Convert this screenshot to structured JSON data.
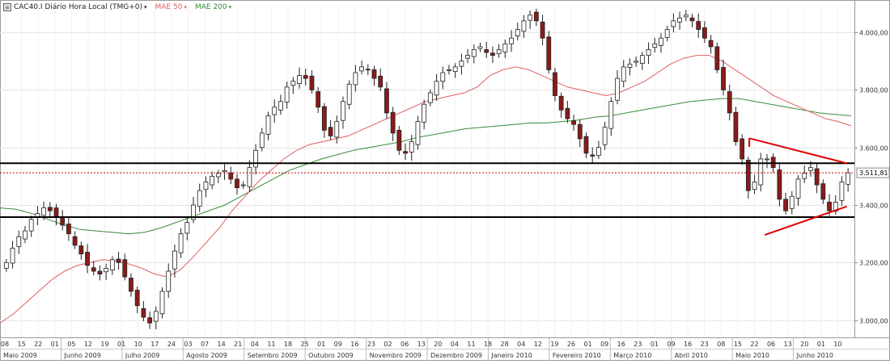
{
  "chart_data": {
    "type": "candlestick",
    "instrument_label": "CAC40.I Diário Hora Local (TMG+0)",
    "indicators": [
      {
        "name": "MAE 50",
        "color": "#e06060"
      },
      {
        "name": "MAE 200",
        "color": "#3a8a3a"
      }
    ],
    "y_axis": {
      "min": 2940,
      "max": 4090,
      "ticks": [
        3000,
        3200,
        3400,
        3600,
        3800,
        4000
      ],
      "tick_labels": [
        "3.000,00",
        "3.200,00",
        "3.400,00",
        "3.600,00",
        "3.800,00",
        "4.000,00"
      ]
    },
    "current_price": {
      "value": 3511.81,
      "label": "3.511,81",
      "color": "#c00000"
    },
    "x_day_labels": [
      "08",
      "15",
      "22",
      "01",
      "05",
      "12",
      "19",
      "01",
      "10",
      "17",
      "24",
      "03",
      "07",
      "14",
      "21",
      "04",
      "11",
      "18",
      "25",
      "01",
      "09",
      "16",
      "23",
      "02",
      "06",
      "13",
      "20",
      "04",
      "11",
      "18",
      "28",
      "04",
      "12",
      "19",
      "26",
      "01",
      "09",
      "16",
      "23",
      "01",
      "09",
      "16",
      "23",
      "08",
      "15",
      "22",
      "06",
      "13",
      "20",
      "01",
      "10"
    ],
    "x_month_labels": [
      "Maio 2009",
      "Junho 2009",
      "Julho 2009",
      "Agosto 2009",
      "Setembro 2009",
      "Outubro 2009",
      "Novembro 2009",
      "Dezembro 2009",
      "Janeiro 2010",
      "Fevereiro 2010",
      "Março 2010",
      "Abril 2010",
      "Maio 2010",
      "Junho 2010"
    ],
    "horizontal_levels": [
      {
        "value": 3545,
        "color": "#000000"
      },
      {
        "value": 3358,
        "color": "#000000"
      }
    ],
    "triangle": {
      "color": "#dd0000",
      "upper": [
        [
          0.877,
          3632
        ],
        [
          0.957,
          3545
        ]
      ],
      "lower": [
        [
          0.895,
          3296
        ],
        [
          0.957,
          3395
        ]
      ]
    },
    "close_series": [
      3200,
      3250,
      3290,
      3310,
      3350,
      3370,
      3390,
      3380,
      3360,
      3330,
      3300,
      3260,
      3230,
      3190,
      3170,
      3160,
      3180,
      3210,
      3200,
      3150,
      3100,
      3050,
      3010,
      2990,
      3030,
      3100,
      3170,
      3240,
      3300,
      3340,
      3400,
      3450,
      3480,
      3500,
      3510,
      3520,
      3490,
      3460,
      3470,
      3530,
      3590,
      3650,
      3710,
      3740,
      3760,
      3810,
      3830,
      3850,
      3840,
      3800,
      3740,
      3660,
      3640,
      3690,
      3760,
      3820,
      3860,
      3880,
      3870,
      3840,
      3810,
      3720,
      3650,
      3590,
      3580,
      3620,
      3690,
      3750,
      3790,
      3830,
      3860,
      3870,
      3880,
      3900,
      3920,
      3940,
      3950,
      3930,
      3920,
      3940,
      3960,
      3980,
      4010,
      4040,
      4060,
      4040,
      3980,
      3870,
      3780,
      3730,
      3700,
      3680,
      3630,
      3580,
      3570,
      3600,
      3670,
      3760,
      3840,
      3880,
      3890,
      3900,
      3920,
      3940,
      3960,
      3980,
      4010,
      4040,
      4050,
      4060,
      4040,
      4010,
      3980,
      3950,
      3870,
      3800,
      3720,
      3620,
      3560,
      3450,
      3480,
      3560,
      3560,
      3530,
      3420,
      3380,
      3430,
      3490,
      3510,
      3530,
      3470,
      3420,
      3380,
      3410,
      3480,
      3512
    ],
    "ma50": [
      2990,
      3020,
      3060,
      3100,
      3140,
      3170,
      3190,
      3200,
      3210,
      3205,
      3195,
      3180,
      3160,
      3150,
      3175,
      3220,
      3270,
      3320,
      3380,
      3430,
      3480,
      3520,
      3560,
      3590,
      3610,
      3620,
      3630,
      3640,
      3660,
      3680,
      3700,
      3720,
      3740,
      3760,
      3770,
      3780,
      3790,
      3810,
      3850,
      3870,
      3880,
      3870,
      3850,
      3830,
      3810,
      3800,
      3790,
      3780,
      3790,
      3810,
      3830,
      3860,
      3890,
      3910,
      3920,
      3920,
      3900,
      3870,
      3840,
      3810,
      3780,
      3760,
      3740,
      3720,
      3700,
      3690,
      3675
    ],
    "ma200": [
      3390,
      3385,
      3370,
      3350,
      3330,
      3315,
      3310,
      3305,
      3300,
      3305,
      3320,
      3340,
      3360,
      3380,
      3400,
      3430,
      3460,
      3490,
      3520,
      3540,
      3560,
      3575,
      3590,
      3600,
      3610,
      3620,
      3635,
      3645,
      3655,
      3665,
      3670,
      3675,
      3680,
      3685,
      3685,
      3690,
      3695,
      3705,
      3710,
      3720,
      3730,
      3740,
      3750,
      3760,
      3765,
      3770,
      3770,
      3760,
      3750,
      3740,
      3730,
      3720,
      3715,
      3710
    ]
  }
}
